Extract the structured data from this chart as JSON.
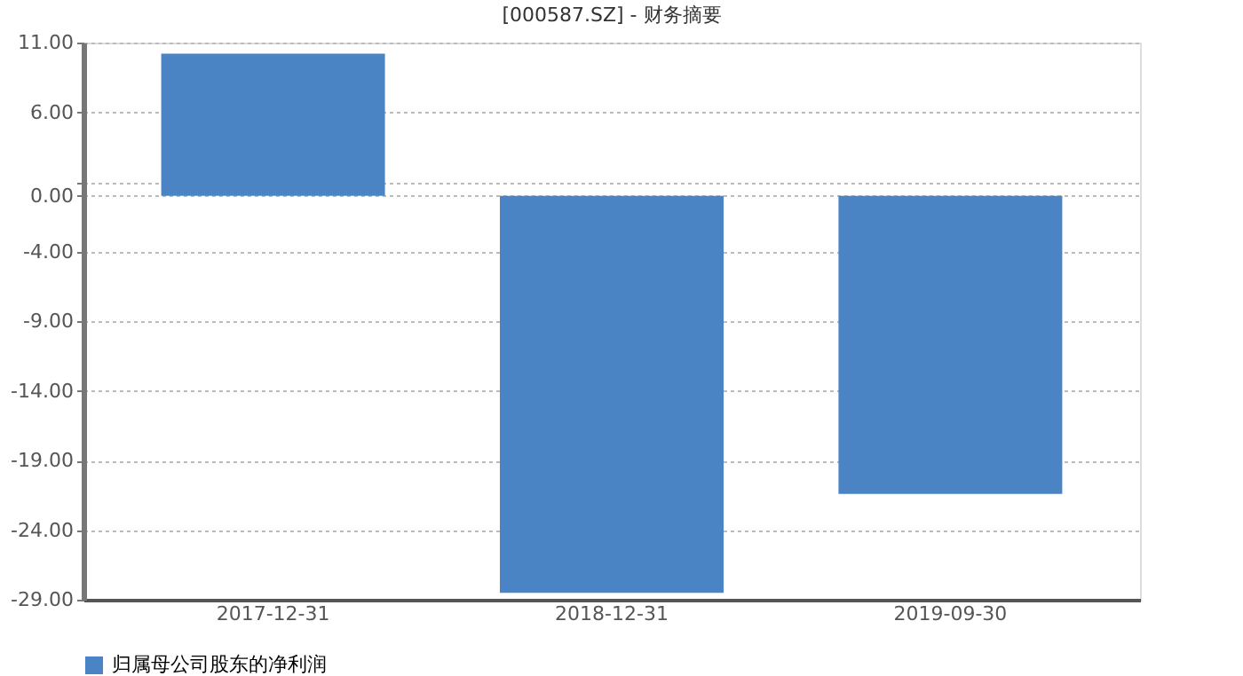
{
  "chart_data": {
    "type": "bar",
    "title": "[000587.SZ] - 财务摘要",
    "categories": [
      "2017-12-31",
      "2018-12-31",
      "2019-09-30"
    ],
    "series": [
      {
        "name": "归属母公司股东的净利润",
        "color": "#4a84c4",
        "values": [
          10.2,
          -28.5,
          -21.4
        ]
      }
    ],
    "ylim": [
      -29,
      11
    ],
    "yticks": [
      {
        "value": 11,
        "label": "11.00"
      },
      {
        "value": 6,
        "label": "6.00"
      },
      {
        "value": 1,
        "label": null
      },
      {
        "value": 0,
        "label": "0.00"
      },
      {
        "value": -4,
        "label": "-4.00"
      },
      {
        "value": -9,
        "label": "-9.00"
      },
      {
        "value": -14,
        "label": "-14.00"
      },
      {
        "value": -19,
        "label": "-19.00"
      },
      {
        "value": -24,
        "label": "-24.00"
      },
      {
        "value": -29,
        "label": "-29.00"
      }
    ],
    "grid": "y",
    "legend": "bottom"
  }
}
